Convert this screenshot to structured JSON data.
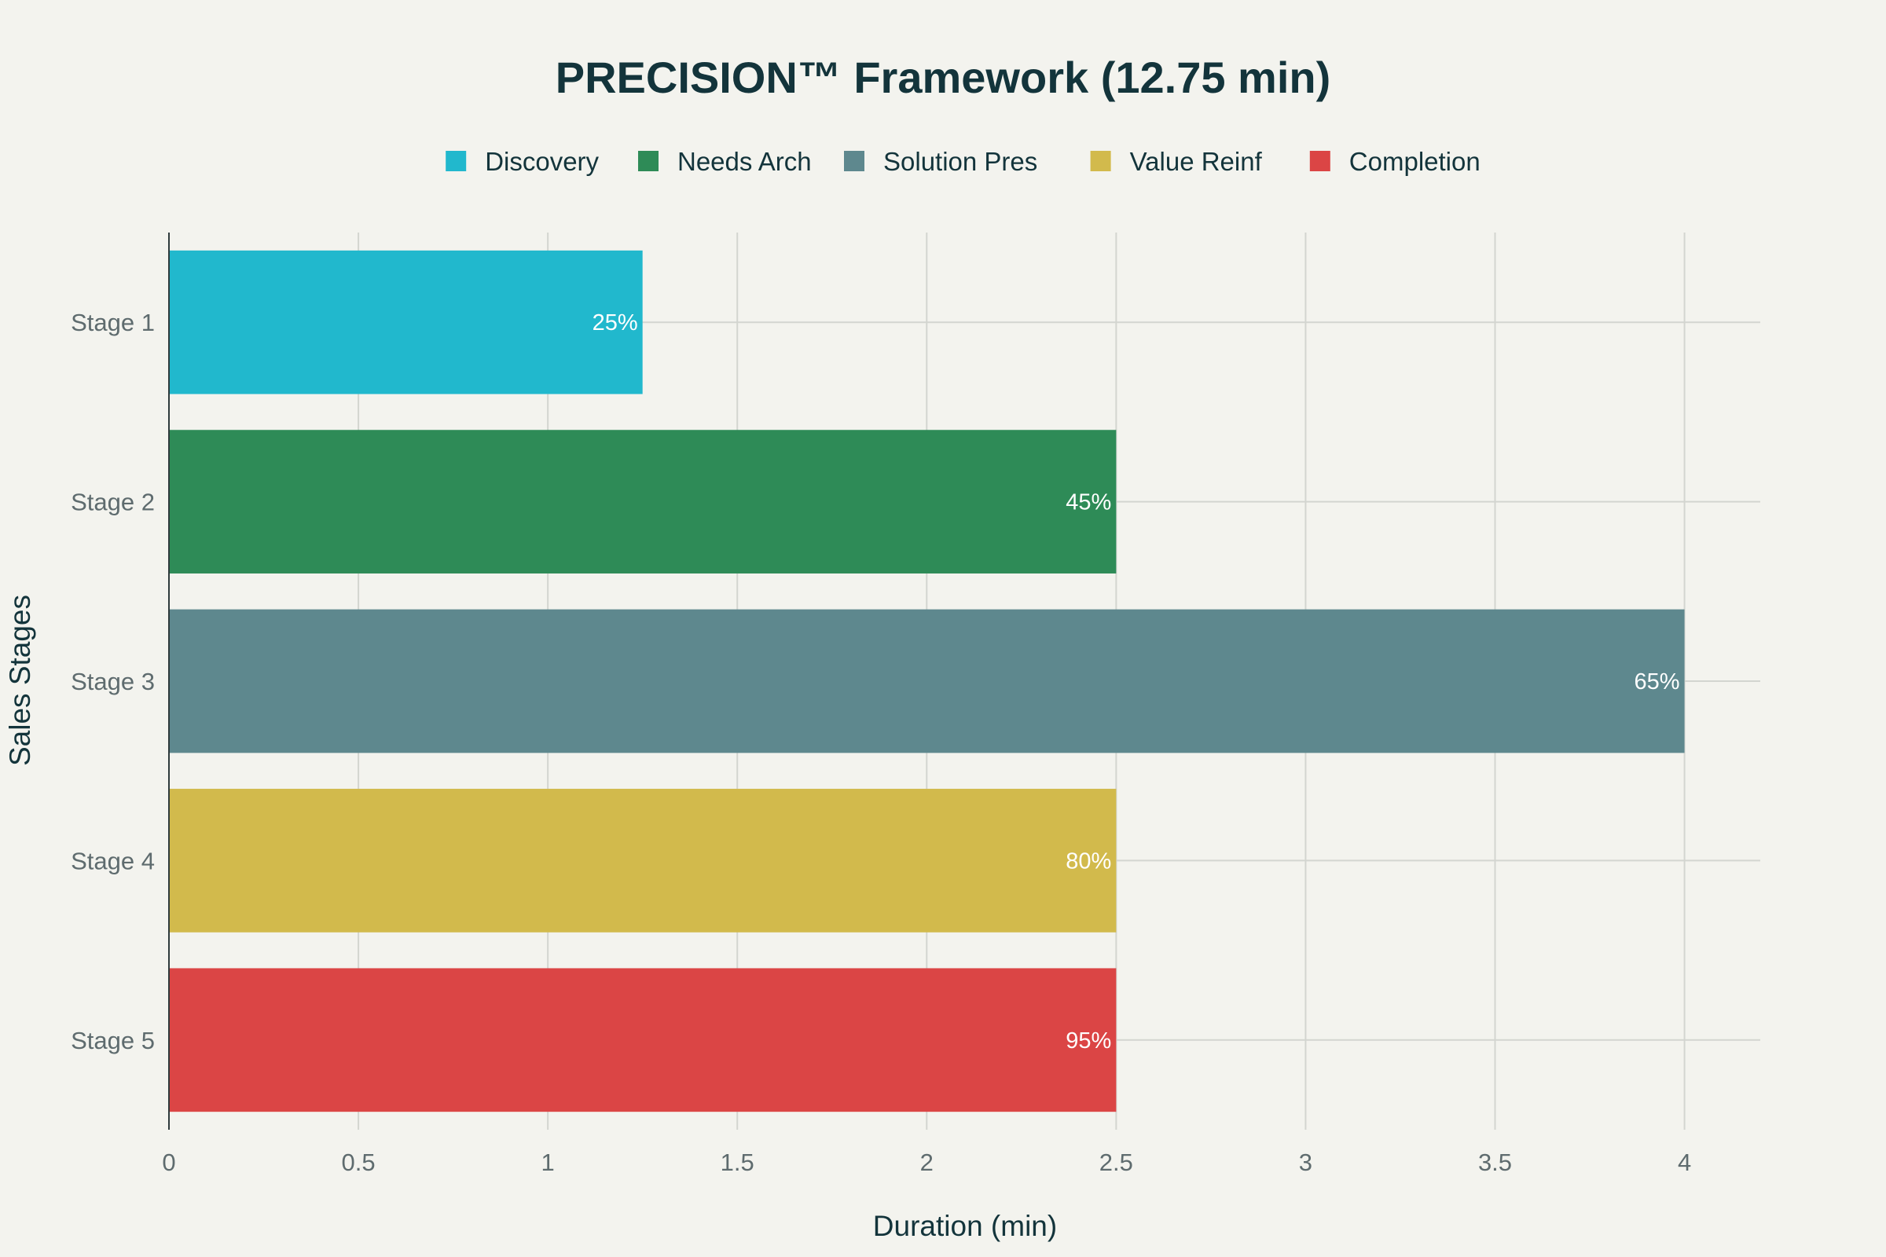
{
  "chart_data": {
    "type": "bar",
    "orientation": "horizontal",
    "title": "PRECISION™ Framework (12.75 min)",
    "xlabel": "Duration (min)",
    "ylabel": "Sales Stages",
    "xlim": [
      0,
      4.2
    ],
    "xticks": [
      "0",
      "0.5",
      "1",
      "1.5",
      "2",
      "2.5",
      "3",
      "3.5",
      "4"
    ],
    "xtick_values": [
      0,
      0.5,
      1,
      1.5,
      2,
      2.5,
      3,
      3.5,
      4
    ],
    "categories": [
      "Stage 1",
      "Stage 2",
      "Stage 3",
      "Stage 4",
      "Stage 5"
    ],
    "values": [
      1.25,
      2.5,
      4,
      2.5,
      2.5
    ],
    "bar_labels": [
      "25%",
      "45%",
      "65%",
      "80%",
      "95%"
    ],
    "series": [
      {
        "name": "Discovery",
        "color": "#21b8cd"
      },
      {
        "name": "Needs Arch",
        "color": "#2e8b57"
      },
      {
        "name": "Solution Pres",
        "color": "#5e888e"
      },
      {
        "name": "Value Reinf",
        "color": "#d2ba4c"
      },
      {
        "name": "Completion",
        "color": "#db4545"
      }
    ],
    "grid": true,
    "legend_position": "top-center"
  }
}
